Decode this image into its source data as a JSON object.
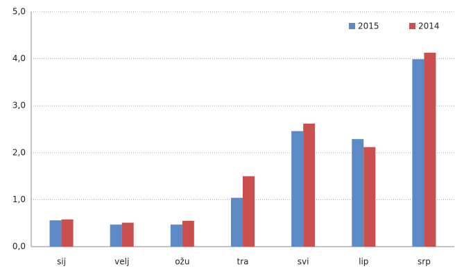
{
  "chart_data": {
    "type": "bar",
    "categories": [
      "sij",
      "velj",
      "ožu",
      "tra",
      "svi",
      "lip",
      "srp"
    ],
    "series": [
      {
        "name": "2015",
        "color": "#5b8ac6",
        "values": [
          0.56,
          0.47,
          0.47,
          1.04,
          2.46,
          2.29,
          3.99
        ]
      },
      {
        "name": "2014",
        "color": "#c9504f",
        "values": [
          0.58,
          0.51,
          0.55,
          1.5,
          2.62,
          2.12,
          4.13
        ]
      }
    ],
    "ylim": [
      0,
      5
    ],
    "yticks": [
      {
        "value": 0,
        "label": "0,0"
      },
      {
        "value": 1,
        "label": "1,0"
      },
      {
        "value": 2,
        "label": "2,0"
      },
      {
        "value": 3,
        "label": "3,0"
      },
      {
        "value": 4,
        "label": "4,0"
      },
      {
        "value": 5,
        "label": "5,0"
      }
    ],
    "grid": true,
    "legend": "top-right"
  }
}
